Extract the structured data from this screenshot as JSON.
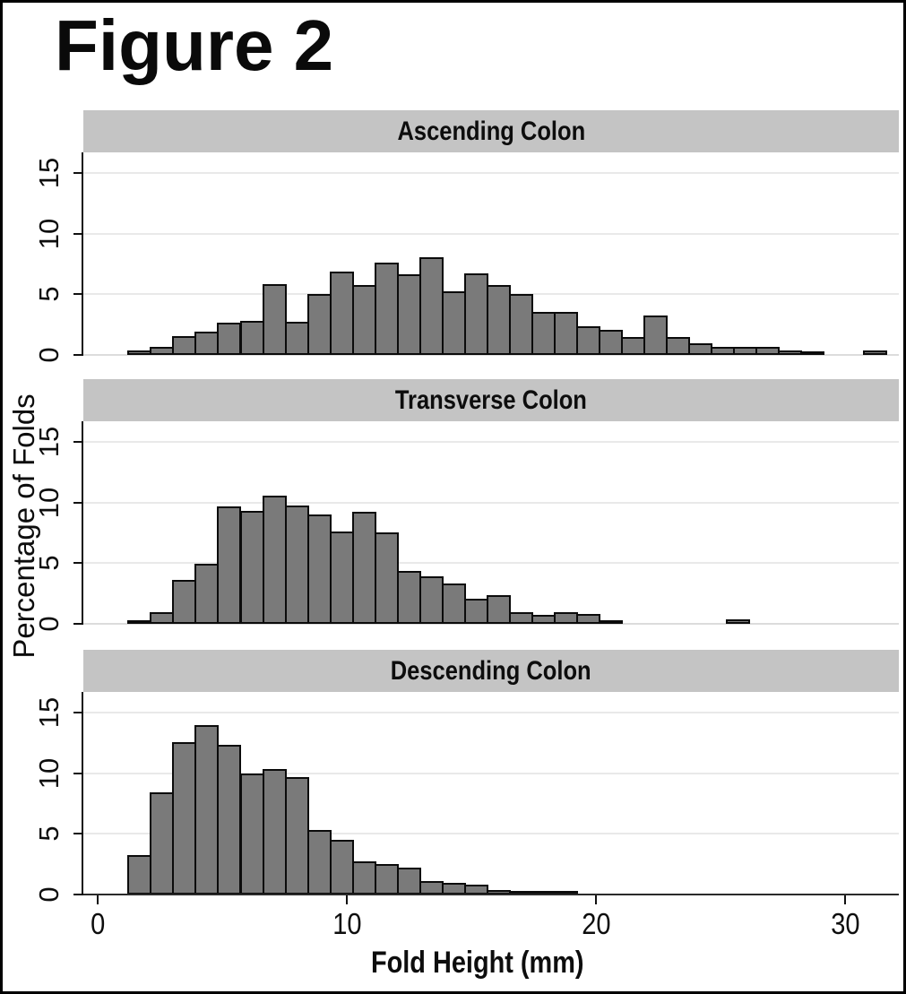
{
  "figure": {
    "title": "Figure 2"
  },
  "axes": {
    "x_label": "Fold Height (mm)",
    "y_label": "Percentage of Folds",
    "x_ticks": [
      "0",
      "10",
      "20",
      "30"
    ],
    "x_tick_values": [
      0,
      10,
      20,
      30
    ],
    "y_ticks": [
      "0",
      "5",
      "10",
      "15"
    ],
    "y_tick_values": [
      0,
      5,
      10,
      15
    ]
  },
  "colors": {
    "bar_fill": "#7a7a7a",
    "bar_border": "#0b0b0b",
    "header_bg": "#c4c4c4",
    "grid_line": "#e9e9e9",
    "axis_line": "#111111",
    "background": "#ffffff",
    "text": "#0d0d0d"
  },
  "chart_data": [
    {
      "type": "histogram",
      "title": "Ascending Colon",
      "xlabel": "Fold Height (mm)",
      "ylabel": "Percentage of Folds",
      "bin_start_mm": 1.2,
      "bin_width_mm": 0.9,
      "values_pct": [
        0.2,
        0.5,
        1.4,
        1.8,
        2.5,
        2.7,
        5.7,
        2.6,
        4.9,
        6.7,
        5.6,
        7.5,
        6.5,
        7.9,
        5.1,
        6.6,
        5.6,
        4.9,
        3.4,
        3.4,
        2.2,
        1.9,
        1.3,
        3.1,
        1.3,
        0.8,
        0.5,
        0.5,
        0.5,
        0.2,
        0.15
      ],
      "isolated_bins": [
        {
          "x_mm": 30.7,
          "value_pct": 0.25
        }
      ],
      "xlim": [
        -0.6,
        32.2
      ],
      "ylim": [
        0,
        16.7
      ],
      "x_ticks": [
        0,
        10,
        20,
        30
      ],
      "y_ticks": [
        0,
        5,
        10,
        15
      ],
      "grid": true,
      "legend": "none"
    },
    {
      "type": "histogram",
      "title": "Transverse Colon",
      "xlabel": "Fold Height (mm)",
      "ylabel": "Percentage of Folds",
      "bin_start_mm": 1.2,
      "bin_width_mm": 0.9,
      "values_pct": [
        0.15,
        0.8,
        3.5,
        4.8,
        9.5,
        9.2,
        10.4,
        9.6,
        8.9,
        7.5,
        9.1,
        7.4,
        4.2,
        3.8,
        3.2,
        1.9,
        2.2,
        0.8,
        0.6,
        0.8,
        0.7,
        0.15
      ],
      "isolated_bins": [
        {
          "x_mm": 25.2,
          "value_pct": 0.2
        }
      ],
      "xlim": [
        -0.6,
        32.2
      ],
      "ylim": [
        0,
        16.7
      ],
      "x_ticks": [
        0,
        10,
        20,
        30
      ],
      "y_ticks": [
        0,
        5,
        10,
        15
      ],
      "grid": true,
      "legend": "none"
    },
    {
      "type": "histogram",
      "title": "Descending Colon",
      "xlabel": "Fold Height (mm)",
      "ylabel": "Percentage of Folds",
      "bin_start_mm": 1.2,
      "bin_width_mm": 0.9,
      "values_pct": [
        3.1,
        8.3,
        12.4,
        13.8,
        12.2,
        9.8,
        10.2,
        9.5,
        5.2,
        4.4,
        2.6,
        2.4,
        2.1,
        1.0,
        0.8,
        0.7,
        0.2,
        0.15,
        0.15,
        0.15
      ],
      "isolated_bins": [],
      "xlim": [
        -0.6,
        32.2
      ],
      "ylim": [
        0,
        16.7
      ],
      "x_ticks": [
        0,
        10,
        20,
        30
      ],
      "y_ticks": [
        0,
        5,
        10,
        15
      ],
      "grid": true,
      "legend": "none"
    }
  ]
}
